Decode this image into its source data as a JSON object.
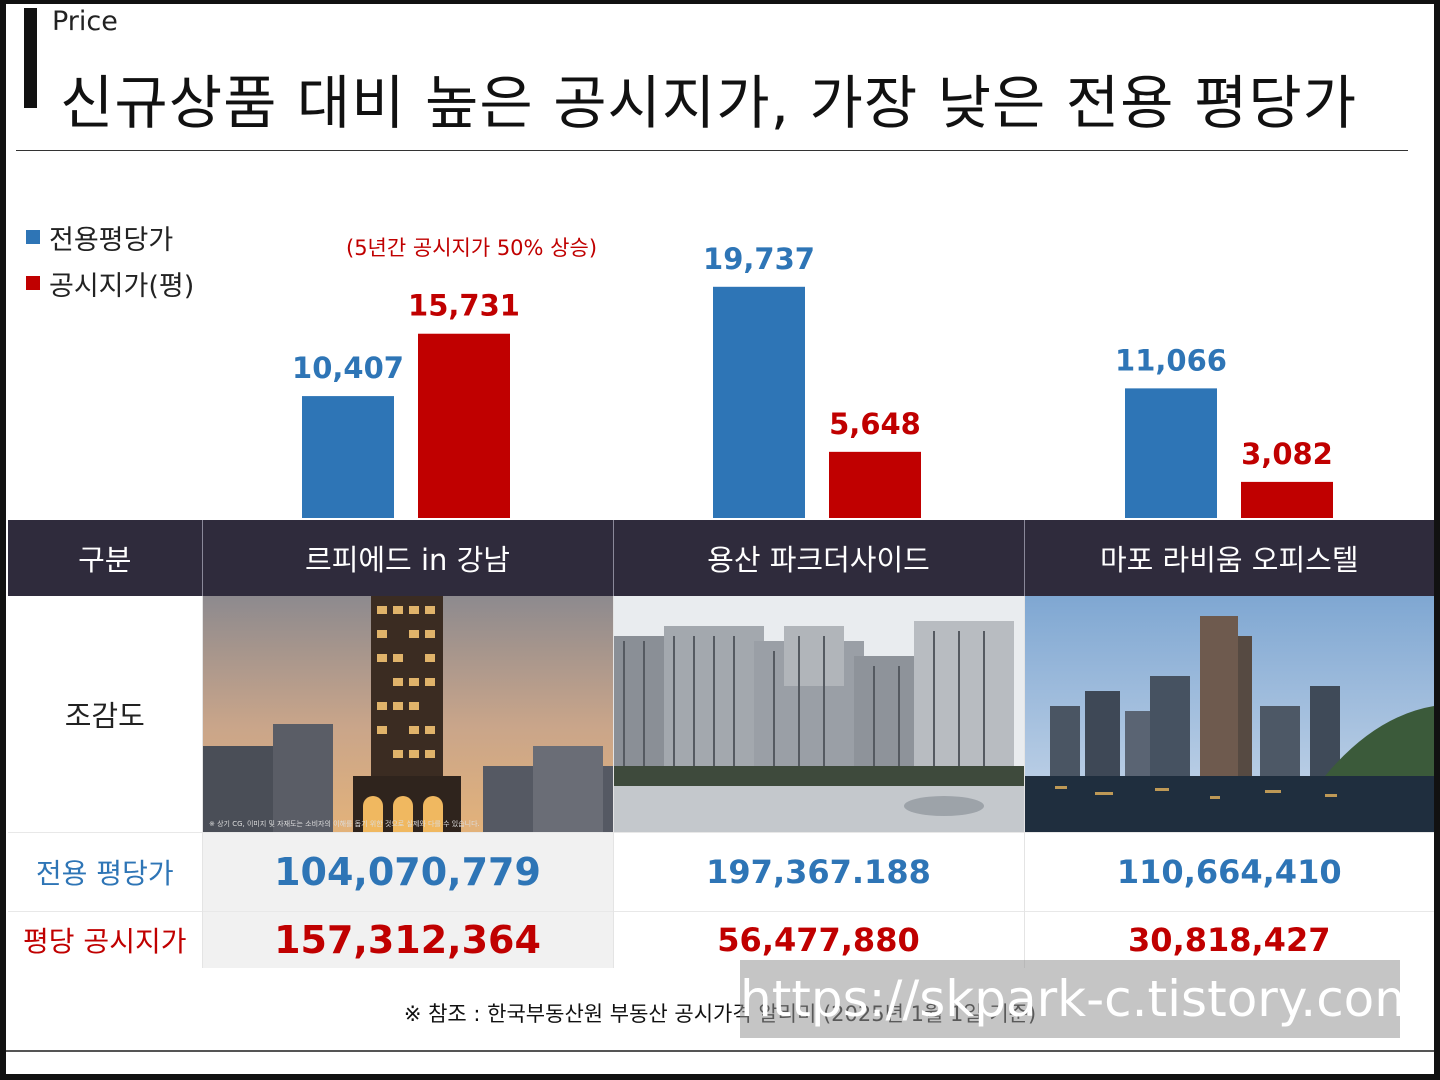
{
  "header": {
    "section": "Price",
    "title": "신규상품 대비 높은 공시지가, 가장 낮은 전용 평당가"
  },
  "legend": [
    {
      "label": "전용평당가",
      "color": "#2e75b6"
    },
    {
      "label": "공시지가(평)",
      "color": "#c00000"
    }
  ],
  "annotation": "(5년간 공시지가 50% 상승)",
  "chart_data": {
    "type": "bar",
    "categories": [
      "르피에드 in 강남",
      "용산 파크더사이드",
      "마포 라비움 오피스텔"
    ],
    "series": [
      {
        "name": "전용평당가",
        "color": "#2e75b6",
        "values": [
          10407,
          19737,
          11066
        ],
        "labels": [
          "10,407",
          "19,737",
          "11,066"
        ]
      },
      {
        "name": "공시지가(평)",
        "color": "#c00000",
        "values": [
          15731,
          5648,
          3082
        ],
        "labels": [
          "15,731",
          "5,648",
          "3,082"
        ]
      }
    ],
    "ylim": [
      0,
      21000
    ],
    "grid": false,
    "legend_position": "top-left"
  },
  "table": {
    "header": [
      "구분",
      "르피에드 in 강남",
      "용산 파크더사이드",
      "마포 라비움 오피스텔"
    ],
    "image_row_label": "조감도",
    "image_caption": "※ 상기 CG, 이미지 및 자재도는 소비자의 이해를 돕기 위한 것으로 실제와 다를 수 있습니다.",
    "price_row": {
      "label": "전용 평당가",
      "values": [
        "104,070,779",
        "197,367.188",
        "110,664,410"
      ]
    },
    "land_row": {
      "label": "평당 공시지가",
      "values": [
        "157,312,364",
        "56,477,880",
        "30,818,427"
      ]
    }
  },
  "footnote": "※ 참조 : 한국부동산원 부동산 공시가격 알리미 (2025년 1월 1일 기준)",
  "watermark": "https://skpark-c.tistory.com"
}
